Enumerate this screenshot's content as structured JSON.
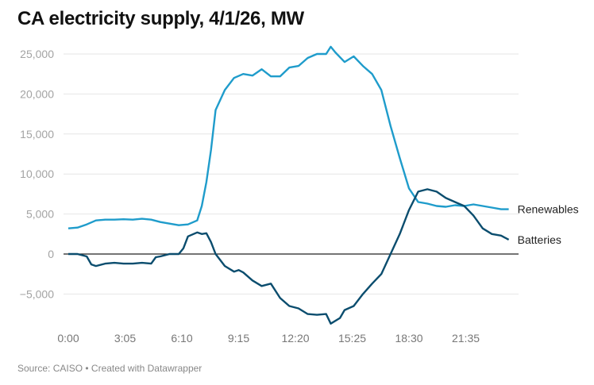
{
  "title": "CA electricity supply, 4/1/26, MW",
  "footer": "Source: CAISO • Created with Datawrapper",
  "chart_data": {
    "type": "line",
    "title": "CA electricity supply, 4/1/26, MW",
    "xlabel": "",
    "ylabel": "",
    "ylim": [
      -9000,
      26000
    ],
    "xlim": [
      "0:00",
      "23:55"
    ],
    "grid": true,
    "legend": "direct labels at line ends (right)",
    "y_ticks": [
      25000,
      20000,
      15000,
      10000,
      5000,
      0,
      -5000
    ],
    "y_tick_labels": [
      "25,000",
      "20,000",
      "15,000",
      "10,000",
      "5,000",
      "0",
      "−5,000"
    ],
    "x_ticks": [
      "0:00",
      "3:05",
      "6:10",
      "9:15",
      "12:20",
      "15:25",
      "18:30",
      "21:35"
    ],
    "series": [
      {
        "name": "Renewables",
        "color": "#1f9ccb",
        "x": [
          "0:00",
          "0:30",
          "1:00",
          "1:30",
          "2:00",
          "2:30",
          "3:00",
          "3:30",
          "4:00",
          "4:30",
          "5:00",
          "5:30",
          "6:00",
          "6:30",
          "7:00",
          "7:15",
          "7:30",
          "7:45",
          "8:00",
          "8:30",
          "9:00",
          "9:30",
          "10:00",
          "10:30",
          "11:00",
          "11:30",
          "12:00",
          "12:30",
          "13:00",
          "13:30",
          "14:00",
          "14:15",
          "14:30",
          "15:00",
          "15:30",
          "16:00",
          "16:30",
          "17:00",
          "17:30",
          "18:00",
          "18:30",
          "19:00",
          "19:30",
          "20:00",
          "20:30",
          "21:00",
          "21:30",
          "22:00",
          "22:30",
          "23:00",
          "23:30",
          "23:55"
        ],
        "values": [
          3200,
          3300,
          3700,
          4200,
          4300,
          4300,
          4350,
          4300,
          4400,
          4300,
          4000,
          3800,
          3600,
          3700,
          4200,
          6000,
          9000,
          13000,
          18000,
          20500,
          22000,
          22500,
          22300,
          23100,
          22200,
          22200,
          23300,
          23500,
          24500,
          25000,
          25000,
          25900,
          25200,
          24000,
          24700,
          23500,
          22500,
          20500,
          16000,
          12000,
          8200,
          6500,
          6300,
          6000,
          5900,
          6100,
          6000,
          6200,
          6000,
          5800,
          5600,
          5600
        ]
      },
      {
        "name": "Batteries",
        "color": "#0b4d6e",
        "x": [
          "0:00",
          "0:30",
          "1:00",
          "1:15",
          "1:30",
          "2:00",
          "2:30",
          "3:00",
          "3:30",
          "4:00",
          "4:30",
          "4:45",
          "5:00",
          "5:30",
          "6:00",
          "6:15",
          "6:30",
          "7:00",
          "7:15",
          "7:30",
          "7:45",
          "8:00",
          "8:30",
          "9:00",
          "9:15",
          "9:30",
          "10:00",
          "10:30",
          "11:00",
          "11:30",
          "12:00",
          "12:30",
          "13:00",
          "13:30",
          "14:00",
          "14:15",
          "14:45",
          "15:00",
          "15:30",
          "16:00",
          "16:30",
          "17:00",
          "17:30",
          "18:00",
          "18:30",
          "19:00",
          "19:30",
          "20:00",
          "20:30",
          "21:00",
          "21:30",
          "22:00",
          "22:30",
          "23:00",
          "23:30",
          "23:55"
        ],
        "values": [
          0,
          0,
          -300,
          -1300,
          -1500,
          -1200,
          -1100,
          -1200,
          -1200,
          -1100,
          -1200,
          -400,
          -300,
          0,
          0,
          700,
          2200,
          2700,
          2500,
          2600,
          1500,
          0,
          -1500,
          -2200,
          -2000,
          -2300,
          -3300,
          -4000,
          -3700,
          -5500,
          -6500,
          -6800,
          -7500,
          -7600,
          -7500,
          -8700,
          -8000,
          -7000,
          -6500,
          -5000,
          -3700,
          -2500,
          0,
          2500,
          5500,
          7800,
          8100,
          7800,
          7000,
          6500,
          6000,
          4800,
          3200,
          2500,
          2300,
          1800
        ]
      }
    ]
  }
}
